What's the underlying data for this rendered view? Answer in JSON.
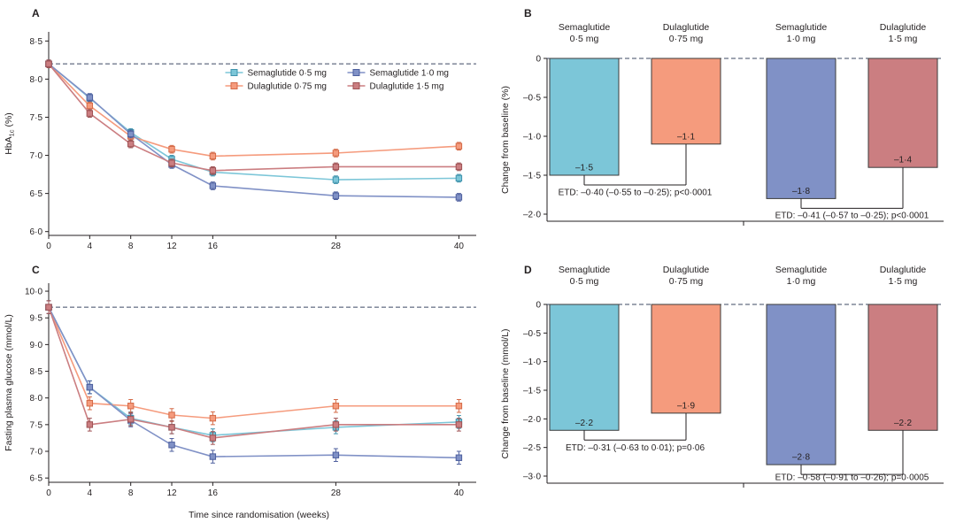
{
  "panels": {
    "a": {
      "label": "A"
    },
    "b": {
      "label": "B"
    },
    "c": {
      "label": "C"
    },
    "d": {
      "label": "D"
    }
  },
  "colors": {
    "axis": "#231f20",
    "text": "#231f20",
    "baseline_dash": "#3c4963",
    "bar_outline": "#3b3b3b",
    "sema05": {
      "fill": "#7cc6d8",
      "edge": "#3e93ad"
    },
    "dula075": {
      "fill": "#f59b7d",
      "edge": "#d46a47"
    },
    "sema10": {
      "fill": "#8091c6",
      "edge": "#4d5f9e"
    },
    "dula15": {
      "fill": "#cb7e81",
      "edge": "#9e5254"
    }
  },
  "chart_data": [
    {
      "id": "panel-a",
      "type": "line",
      "title": "",
      "ylabel": "HbA1c (%)",
      "ylabel_parts": [
        {
          "t": "HbA"
        },
        {
          "t": "1c",
          "sub": true
        },
        {
          "t": " (%)"
        }
      ],
      "xlabel": "",
      "x": [
        0,
        4,
        8,
        12,
        16,
        28,
        40
      ],
      "xtick_labels": [
        "0",
        "4",
        "8",
        "12",
        "16",
        "28",
        "40"
      ],
      "xlim": [
        0,
        41
      ],
      "ylim": [
        5.95,
        8.62
      ],
      "yticks": [
        6.0,
        6.5,
        7.0,
        7.5,
        8.0,
        8.5
      ],
      "ytick_labels": [
        "6·0",
        "6·5",
        "7·0",
        "7·5",
        "8·0",
        "8·5"
      ],
      "baseline": 8.2,
      "legend": true,
      "grid": false,
      "series": [
        {
          "name": "Semaglutide 0·5 mg",
          "color_key": "sema05",
          "err": 0.05,
          "values": [
            8.2,
            7.75,
            7.3,
            6.95,
            6.78,
            6.68,
            6.7
          ]
        },
        {
          "name": "Dulaglutide 0·75 mg",
          "color_key": "dula075",
          "err": 0.05,
          "values": [
            8.2,
            7.65,
            7.25,
            7.08,
            6.99,
            7.03,
            7.12
          ]
        },
        {
          "name": "Semaglutide 1·0 mg",
          "color_key": "sema10",
          "err": 0.05,
          "values": [
            8.2,
            7.76,
            7.28,
            6.88,
            6.6,
            6.47,
            6.45
          ]
        },
        {
          "name": "Dulaglutide 1·5 mg",
          "color_key": "dula15",
          "err": 0.05,
          "values": [
            8.2,
            7.55,
            7.15,
            6.9,
            6.8,
            6.85,
            6.85
          ]
        }
      ]
    },
    {
      "id": "panel-b",
      "type": "bar",
      "title": "",
      "ylabel": "Change from baseline (%)",
      "categories": [
        "Semaglutide 0·5 mg",
        "Dulaglutide 0·75 mg",
        "Semaglutide 1·0 mg",
        "Dulaglutide 1·5 mg"
      ],
      "headers": [
        [
          "Semaglutide",
          "0·5 mg"
        ],
        [
          "Dulaglutide",
          "0·75 mg"
        ],
        [
          "Semaglutide",
          "1·0 mg"
        ],
        [
          "Dulaglutide",
          "1·5 mg"
        ]
      ],
      "values": [
        -1.5,
        -1.1,
        -1.8,
        -1.4
      ],
      "value_labels": [
        "–1·5",
        "–1·1",
        "–1·8",
        "–1·4"
      ],
      "color_keys": [
        "sema05",
        "dula075",
        "sema10",
        "dula15"
      ],
      "ylim": [
        -2.0,
        0
      ],
      "yticks": [
        0,
        -0.5,
        -1.0,
        -1.5,
        -2.0
      ],
      "ytick_labels": [
        "0",
        "–0·5",
        "–1·0",
        "–1·5",
        "–2·0"
      ],
      "etd": [
        {
          "pair": [
            0,
            1
          ],
          "text": "ETD: –0·40 (–0·55 to –0·25); p<0·0001"
        },
        {
          "pair": [
            2,
            3
          ],
          "text": "ETD: –0·41 (–0·57 to –0·25); p<0·0001"
        }
      ]
    },
    {
      "id": "panel-c",
      "type": "line",
      "title": "",
      "ylabel": "Fasting plasma glucose (mmol/L)",
      "xlabel": "Time since randomisation (weeks)",
      "x": [
        0,
        4,
        8,
        12,
        16,
        28,
        40
      ],
      "xtick_labels": [
        "0",
        "4",
        "8",
        "12",
        "16",
        "28",
        "40"
      ],
      "xlim": [
        0,
        41
      ],
      "ylim": [
        6.42,
        10.15
      ],
      "yticks": [
        6.5,
        7.0,
        7.5,
        8.0,
        8.5,
        9.0,
        9.5,
        10.0
      ],
      "ytick_labels": [
        "6·5",
        "7·0",
        "7·5",
        "8·0",
        "8·5",
        "9·0",
        "9·5",
        "10·0"
      ],
      "baseline": 9.7,
      "legend": false,
      "grid": false,
      "series": [
        {
          "name": "Semaglutide 0·5 mg",
          "color_key": "sema05",
          "err": 0.12,
          "values": [
            9.7,
            8.2,
            7.62,
            7.45,
            7.3,
            7.45,
            7.55
          ]
        },
        {
          "name": "Dulaglutide 0·75 mg",
          "color_key": "dula075",
          "err": 0.12,
          "values": [
            9.7,
            7.9,
            7.85,
            7.68,
            7.62,
            7.85,
            7.85
          ]
        },
        {
          "name": "Semaglutide 1·0 mg",
          "color_key": "sema10",
          "err": 0.12,
          "values": [
            9.7,
            8.2,
            7.58,
            7.12,
            6.9,
            6.93,
            6.88
          ]
        },
        {
          "name": "Dulaglutide 1·5 mg",
          "color_key": "dula15",
          "err": 0.12,
          "values": [
            9.7,
            7.5,
            7.6,
            7.45,
            7.25,
            7.5,
            7.5
          ]
        }
      ]
    },
    {
      "id": "panel-d",
      "type": "bar",
      "title": "",
      "ylabel": "Change from baseline (mmol/L)",
      "categories": [
        "Semaglutide 0·5 mg",
        "Dulaglutide 0·75 mg",
        "Semaglutide 1·0 mg",
        "Dulaglutide 1·5 mg"
      ],
      "headers": [
        [
          "Semaglutide",
          "0·5 mg"
        ],
        [
          "Dulaglutide",
          "0·75 mg"
        ],
        [
          "Semaglutide",
          "1·0 mg"
        ],
        [
          "Dulaglutide",
          "1·5 mg"
        ]
      ],
      "values": [
        -2.2,
        -1.9,
        -2.8,
        -2.2
      ],
      "value_labels": [
        "–2·2",
        "–1·9",
        "–2·8",
        "–2·2"
      ],
      "color_keys": [
        "sema05",
        "dula075",
        "sema10",
        "dula15"
      ],
      "ylim": [
        -3.0,
        0
      ],
      "yticks": [
        0,
        -0.5,
        -1.0,
        -1.5,
        -2.0,
        -2.5,
        -3.0
      ],
      "ytick_labels": [
        "0",
        "–0·5",
        "–1·0",
        "–1·5",
        "–2·0",
        "–2·5",
        "–3·0"
      ],
      "etd": [
        {
          "pair": [
            0,
            1
          ],
          "text": "ETD: –0·31 (–0·63 to 0·01); p=0·06"
        },
        {
          "pair": [
            2,
            3
          ],
          "text": "ETD: –0·58 (–0·91 to –0·26); p=0·0005"
        }
      ]
    }
  ]
}
